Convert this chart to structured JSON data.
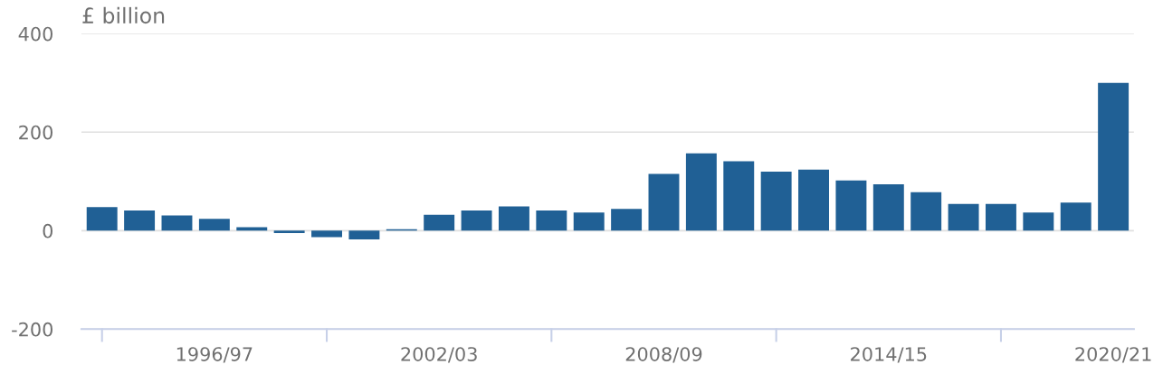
{
  "chart_data": {
    "type": "bar",
    "ylabel": "£ billion",
    "categories": [
      null,
      null,
      null,
      "1996/97",
      null,
      null,
      null,
      null,
      null,
      "2002/03",
      null,
      null,
      null,
      null,
      null,
      "2008/09",
      null,
      null,
      null,
      null,
      null,
      "2014/15",
      null,
      null,
      null,
      null,
      null,
      "2020/21"
    ],
    "values": [
      48,
      41,
      31,
      24,
      7,
      -5,
      -13,
      -18,
      3,
      32,
      41,
      49,
      41,
      37,
      44,
      115,
      157,
      141,
      120,
      124,
      102,
      94,
      78,
      54,
      54,
      37,
      57,
      300
    ],
    "color": "#206095",
    "ylim": [
      -200,
      400
    ],
    "yticks": [
      -200,
      0,
      200,
      400
    ],
    "grid": "y",
    "legend": false
  }
}
